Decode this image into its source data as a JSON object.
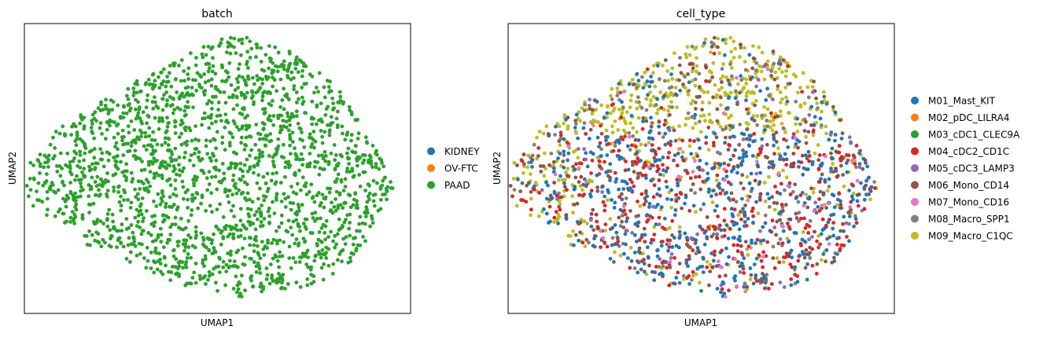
{
  "chart_data": [
    {
      "type": "scatter",
      "title": "batch",
      "xlabel": "UMAP1",
      "ylabel": "UMAP2",
      "xticks": false,
      "yticks": false,
      "grid": false,
      "legend_position": "right",
      "legend": [
        {
          "label": "KIDNEY",
          "color": "#1f77b4"
        },
        {
          "label": "OV-FTC",
          "color": "#ff7f0e"
        },
        {
          "label": "PAAD",
          "color": "#2ca02c"
        }
      ]
    },
    {
      "type": "scatter",
      "title": "cell_type",
      "xlabel": "UMAP1",
      "ylabel": "UMAP2",
      "xticks": false,
      "yticks": false,
      "grid": false,
      "legend_position": "right",
      "legend": [
        {
          "label": "M01_Mast_KIT",
          "color": "#1f77b4"
        },
        {
          "label": "M02_pDC_LILRA4",
          "color": "#ff7f0e"
        },
        {
          "label": "M03_cDC1_CLEC9A",
          "color": "#2ca02c"
        },
        {
          "label": "M04_cDC2_CD1C",
          "color": "#d62728"
        },
        {
          "label": "M05_cDC3_LAMP3",
          "color": "#9467bd"
        },
        {
          "label": "M06_Mono_CD14",
          "color": "#8c564b"
        },
        {
          "label": "M07_Mono_CD16",
          "color": "#e377c2"
        },
        {
          "label": "M08_Macro_SPP1",
          "color": "#7f7f7f"
        },
        {
          "label": "M09_Macro_C1QC",
          "color": "#bcbd22"
        }
      ]
    }
  ]
}
